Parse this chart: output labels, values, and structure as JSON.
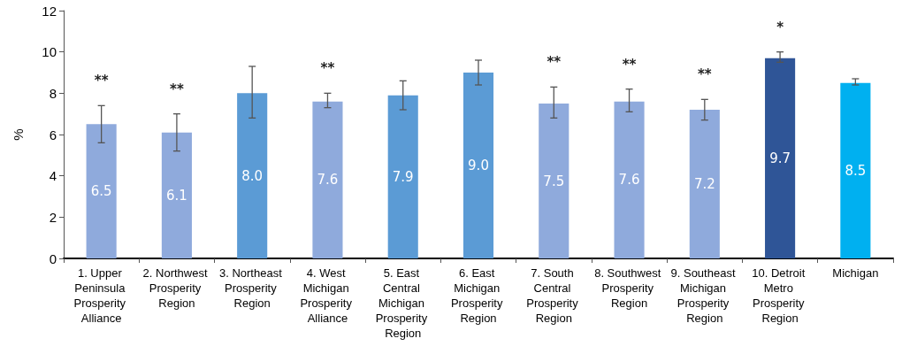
{
  "chart_data": {
    "type": "bar",
    "ylabel": "%",
    "categories": [
      "1. Upper Peninsula Prosperity Alliance",
      "2. Northwest Prosperity Region",
      "3. Northeast Prosperity Region",
      "4. West Michigan Prosperity Alliance",
      "5. East Central Michigan Prosperity Region",
      "6. East Michigan Prosperity Region",
      "7. South Central Prosperity Region",
      "8. Southwest Prosperity Region",
      "9. Southeast Michigan Prosperity Region",
      "10. Detroit Metro Prosperity Region",
      "Michigan"
    ],
    "values": [
      6.5,
      6.1,
      8.0,
      7.6,
      7.9,
      9.0,
      7.5,
      7.6,
      7.2,
      9.7,
      8.5
    ],
    "colors": [
      "#8faadc",
      "#8faadc",
      "#5b9bd5",
      "#8faadc",
      "#5b9bd5",
      "#5b9bd5",
      "#8faadc",
      "#8faadc",
      "#8faadc",
      "#2f5597",
      "#00b0f0"
    ],
    "errors": [
      [
        5.6,
        7.4
      ],
      [
        5.2,
        7.0
      ],
      [
        6.8,
        9.3
      ],
      [
        7.3,
        8.0
      ],
      [
        7.2,
        8.6
      ],
      [
        8.4,
        9.6
      ],
      [
        6.8,
        8.3
      ],
      [
        7.1,
        8.2
      ],
      [
        6.7,
        7.7
      ],
      [
        9.5,
        10.0
      ],
      [
        8.4,
        8.7
      ]
    ],
    "value_labels": [
      "6.5",
      "6.1",
      "8.0",
      "7.6",
      "7.9",
      "9.0",
      "7.5",
      "7.6",
      "7.2",
      "9.7",
      "8.5"
    ],
    "ylim": [
      0,
      12
    ],
    "yticks": [
      0,
      2,
      4,
      6,
      8,
      10,
      12
    ],
    "grid": false,
    "annotations": [
      "**",
      "**",
      null,
      "**",
      null,
      null,
      "**",
      "**",
      "**",
      "*",
      null
    ]
  }
}
